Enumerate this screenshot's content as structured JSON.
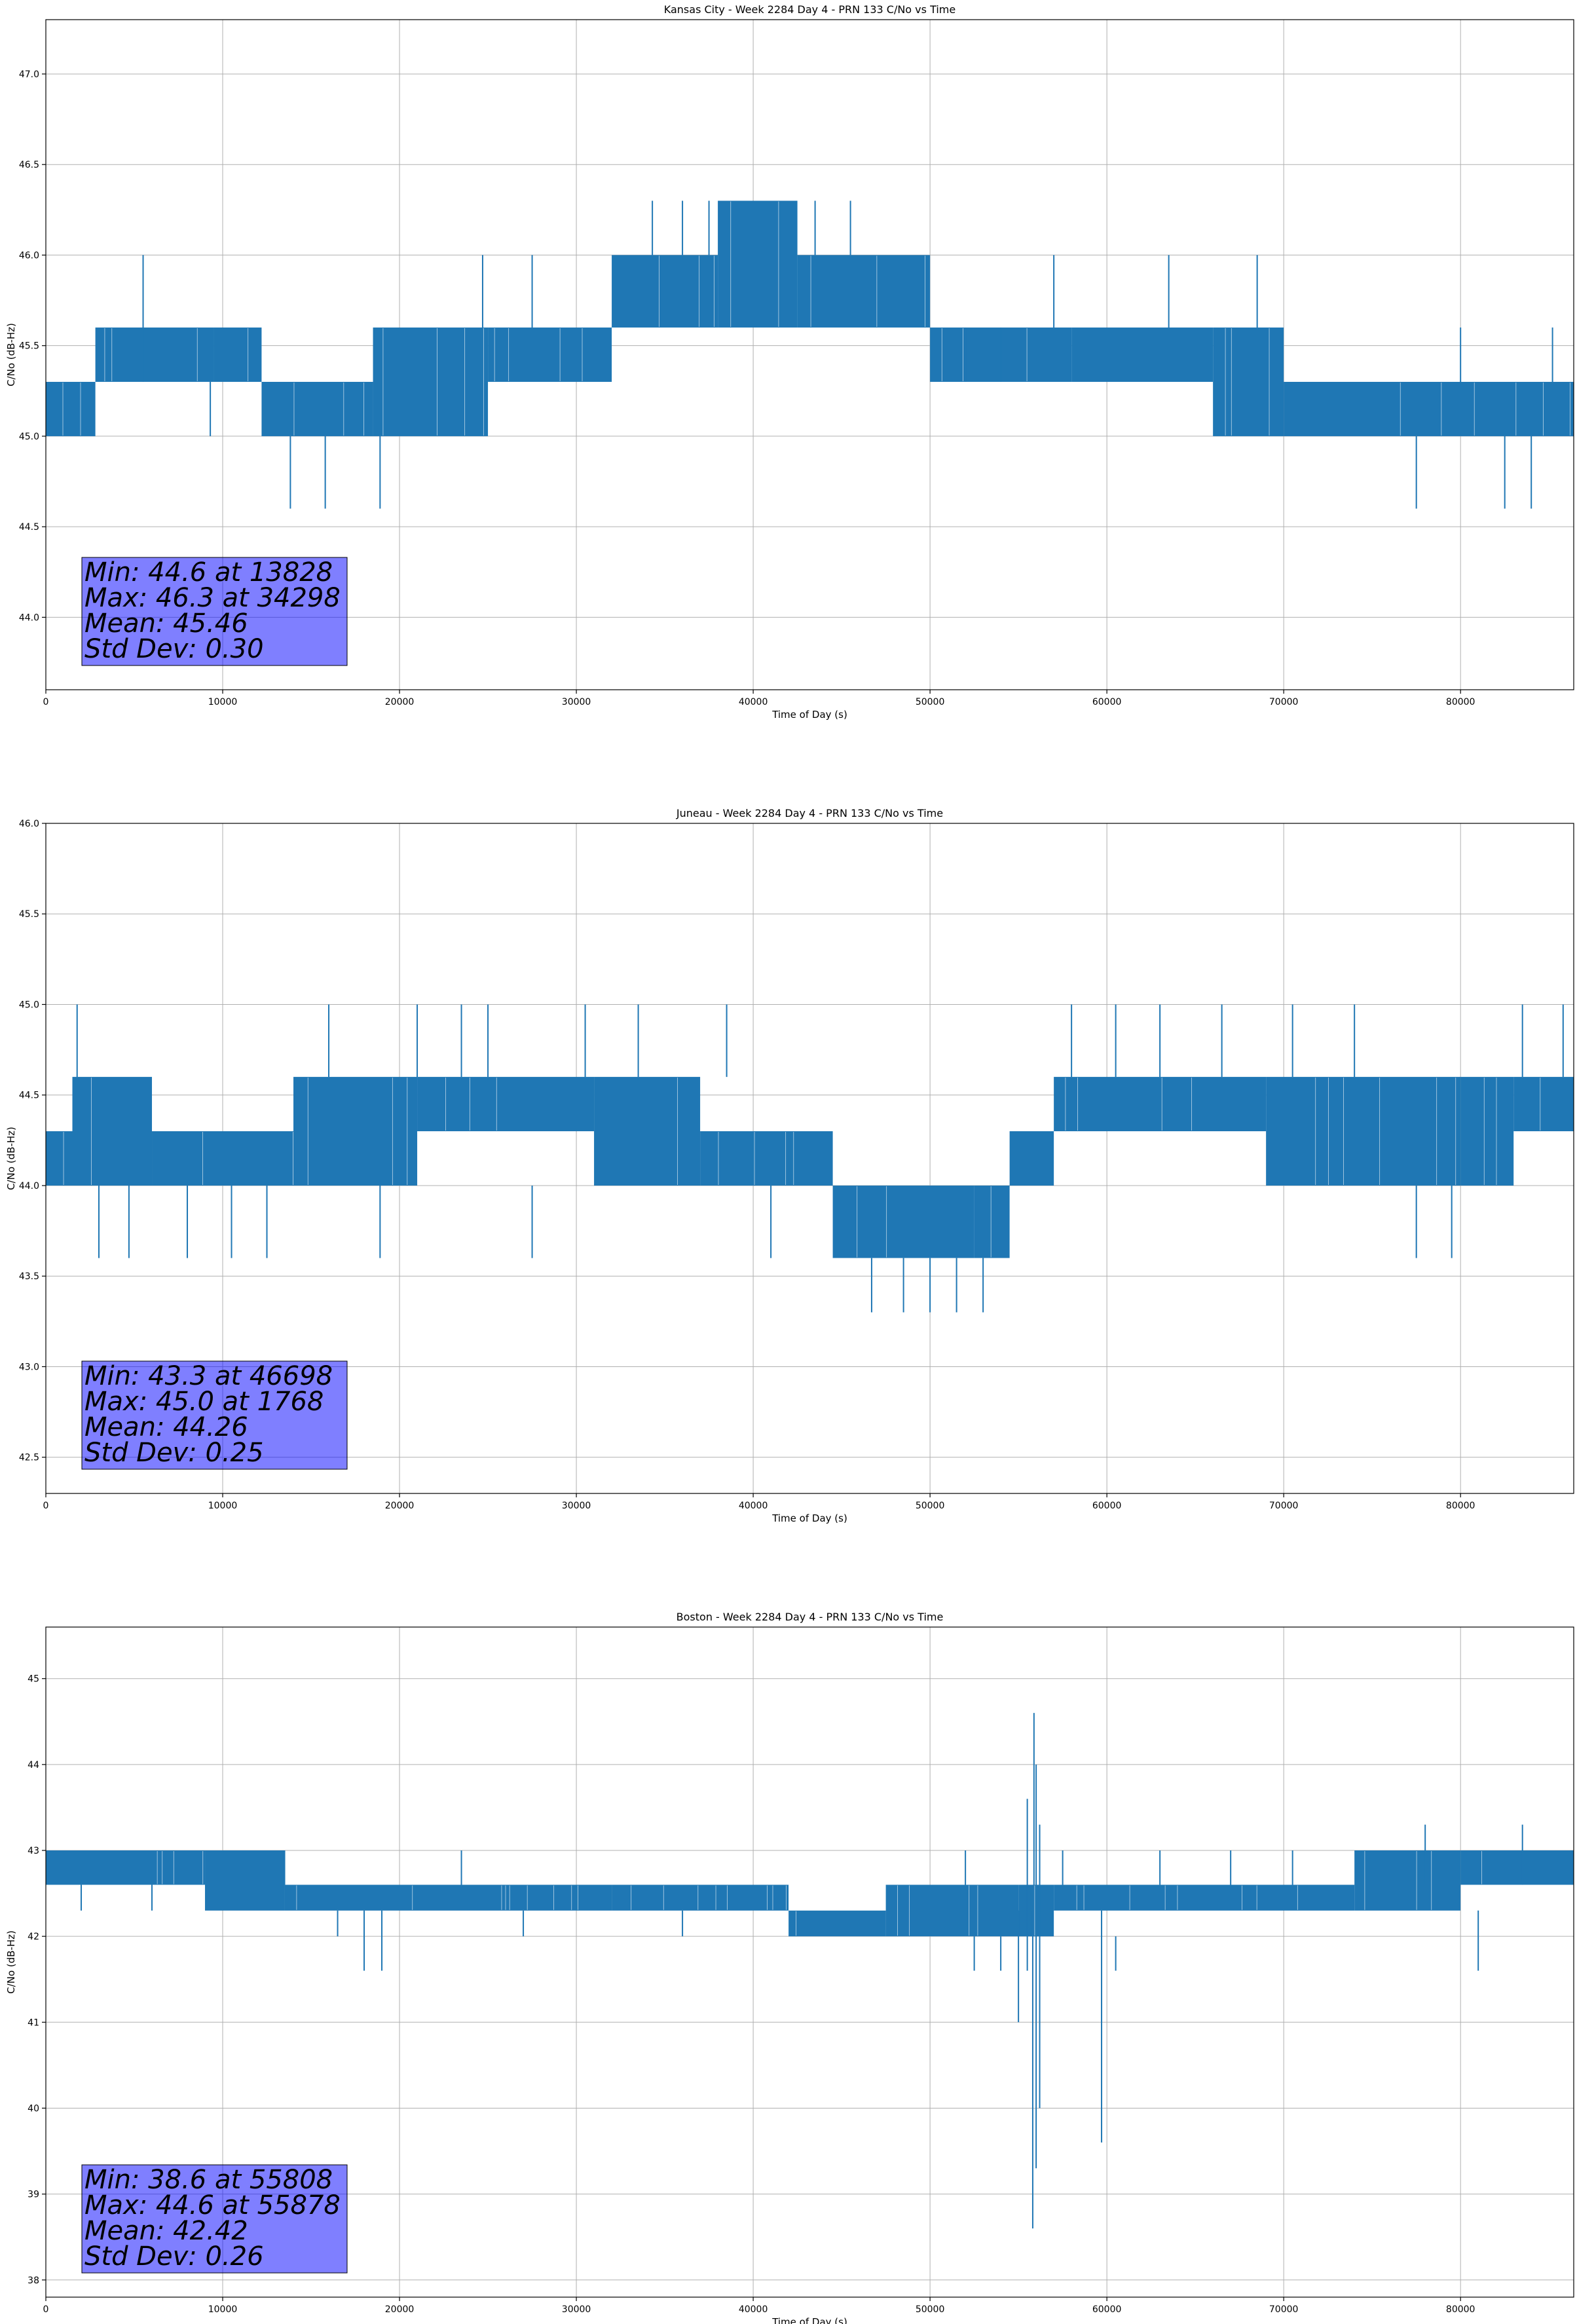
{
  "colors": {
    "series": "#1f77b4",
    "statbox": "#7f7fff",
    "grid": "#b0b0b0"
  },
  "chart_data": [
    {
      "type": "line",
      "title": "Kansas City - Week 2284 Day 4 - PRN 133 C/No vs Time",
      "xlabel": "Time of Day (s)",
      "ylabel": "C/No (dB-Hz)",
      "xlim": [
        0,
        86400
      ],
      "ylim": [
        43.6,
        47.3
      ],
      "xticks": [
        0,
        10000,
        20000,
        30000,
        40000,
        50000,
        60000,
        70000,
        80000
      ],
      "yticks": [
        44.0,
        44.5,
        45.0,
        45.5,
        46.0,
        46.5,
        47.0
      ],
      "ytick_decimals": 1,
      "grid": true,
      "stats": [
        "Min: 44.6 at 13828",
        "Max: 46.3 at 34298",
        "Mean: 45.46",
        "Std Dev: 0.30"
      ],
      "bands": [
        {
          "x0": 0,
          "x1": 2800,
          "lo": 45.0,
          "hi": 45.3
        },
        {
          "x0": 2800,
          "x1": 9500,
          "lo": 45.3,
          "hi": 45.6
        },
        {
          "x0": 9500,
          "x1": 12200,
          "lo": 45.3,
          "hi": 45.6
        },
        {
          "x0": 12200,
          "x1": 18500,
          "lo": 45.0,
          "hi": 45.3
        },
        {
          "x0": 18500,
          "x1": 25000,
          "lo": 45.0,
          "hi": 45.6
        },
        {
          "x0": 25000,
          "x1": 32000,
          "lo": 45.3,
          "hi": 45.6
        },
        {
          "x0": 32000,
          "x1": 38000,
          "lo": 45.6,
          "hi": 46.0
        },
        {
          "x0": 38000,
          "x1": 42500,
          "lo": 45.6,
          "hi": 46.3
        },
        {
          "x0": 42500,
          "x1": 50000,
          "lo": 45.6,
          "hi": 46.0
        },
        {
          "x0": 50000,
          "x1": 58000,
          "lo": 45.3,
          "hi": 45.6
        },
        {
          "x0": 58000,
          "x1": 66000,
          "lo": 45.3,
          "hi": 45.6
        },
        {
          "x0": 66000,
          "x1": 70000,
          "lo": 45.0,
          "hi": 45.6
        },
        {
          "x0": 70000,
          "x1": 86400,
          "lo": 45.0,
          "hi": 45.3
        }
      ],
      "spikes": [
        {
          "x": 5500,
          "lo": 45.3,
          "hi": 46.0
        },
        {
          "x": 9300,
          "lo": 45.0,
          "hi": 45.3
        },
        {
          "x": 13828,
          "lo": 44.6,
          "hi": 45.0
        },
        {
          "x": 15800,
          "lo": 44.6,
          "hi": 45.0
        },
        {
          "x": 18900,
          "lo": 44.6,
          "hi": 45.0
        },
        {
          "x": 24700,
          "lo": 45.6,
          "hi": 46.0
        },
        {
          "x": 27500,
          "lo": 45.6,
          "hi": 46.0
        },
        {
          "x": 34298,
          "lo": 46.0,
          "hi": 46.3
        },
        {
          "x": 36000,
          "lo": 46.0,
          "hi": 46.3
        },
        {
          "x": 37500,
          "lo": 46.0,
          "hi": 46.3
        },
        {
          "x": 43500,
          "lo": 46.0,
          "hi": 46.3
        },
        {
          "x": 45500,
          "lo": 46.0,
          "hi": 46.3
        },
        {
          "x": 52000,
          "lo": 45.3,
          "hi": 45.6
        },
        {
          "x": 54000,
          "lo": 45.3,
          "hi": 45.6
        },
        {
          "x": 57000,
          "lo": 45.6,
          "hi": 46.0
        },
        {
          "x": 63500,
          "lo": 45.6,
          "hi": 46.0
        },
        {
          "x": 68500,
          "lo": 45.6,
          "hi": 46.0
        },
        {
          "x": 77500,
          "lo": 44.6,
          "hi": 45.0
        },
        {
          "x": 80000,
          "lo": 45.3,
          "hi": 45.6
        },
        {
          "x": 82500,
          "lo": 44.6,
          "hi": 45.0
        },
        {
          "x": 84000,
          "lo": 44.6,
          "hi": 45.0
        },
        {
          "x": 85200,
          "lo": 45.3,
          "hi": 45.6
        }
      ]
    },
    {
      "type": "line",
      "title": "Juneau - Week 2284 Day 4 - PRN 133 C/No vs Time",
      "xlabel": "Time of Day (s)",
      "ylabel": "C/No (dB-Hz)",
      "xlim": [
        0,
        86400
      ],
      "ylim": [
        42.3,
        46.0
      ],
      "xticks": [
        0,
        10000,
        20000,
        30000,
        40000,
        50000,
        60000,
        70000,
        80000
      ],
      "yticks": [
        42.5,
        43.0,
        43.5,
        44.0,
        44.5,
        45.0,
        45.5,
        46.0
      ],
      "ytick_decimals": 1,
      "grid": true,
      "stats": [
        "Min: 43.3 at 46698",
        "Max: 45.0 at 1768",
        "Mean: 44.26",
        "Std Dev: 0.25"
      ],
      "bands": [
        {
          "x0": 0,
          "x1": 1500,
          "lo": 44.0,
          "hi": 44.3
        },
        {
          "x0": 1500,
          "x1": 6000,
          "lo": 44.0,
          "hi": 44.6
        },
        {
          "x0": 6000,
          "x1": 14000,
          "lo": 44.0,
          "hi": 44.3
        },
        {
          "x0": 14000,
          "x1": 21000,
          "lo": 44.0,
          "hi": 44.6
        },
        {
          "x0": 21000,
          "x1": 31000,
          "lo": 44.3,
          "hi": 44.6
        },
        {
          "x0": 31000,
          "x1": 37000,
          "lo": 44.0,
          "hi": 44.6
        },
        {
          "x0": 37000,
          "x1": 44500,
          "lo": 44.0,
          "hi": 44.3
        },
        {
          "x0": 44500,
          "x1": 52500,
          "lo": 43.6,
          "hi": 44.0
        },
        {
          "x0": 52500,
          "x1": 54500,
          "lo": 43.6,
          "hi": 44.0
        },
        {
          "x0": 54500,
          "x1": 57000,
          "lo": 44.0,
          "hi": 44.3
        },
        {
          "x0": 57000,
          "x1": 69000,
          "lo": 44.3,
          "hi": 44.6
        },
        {
          "x0": 69000,
          "x1": 80000,
          "lo": 44.0,
          "hi": 44.6
        },
        {
          "x0": 80000,
          "x1": 83000,
          "lo": 44.0,
          "hi": 44.6
        },
        {
          "x0": 83000,
          "x1": 86400,
          "lo": 44.3,
          "hi": 44.6
        }
      ],
      "spikes": [
        {
          "x": 1768,
          "lo": 44.6,
          "hi": 45.0
        },
        {
          "x": 3000,
          "lo": 43.6,
          "hi": 44.0
        },
        {
          "x": 4700,
          "lo": 43.6,
          "hi": 44.0
        },
        {
          "x": 8000,
          "lo": 43.6,
          "hi": 44.0
        },
        {
          "x": 10500,
          "lo": 43.6,
          "hi": 44.0
        },
        {
          "x": 12500,
          "lo": 43.6,
          "hi": 44.0
        },
        {
          "x": 16000,
          "lo": 44.6,
          "hi": 45.0
        },
        {
          "x": 18900,
          "lo": 43.6,
          "hi": 44.0
        },
        {
          "x": 21000,
          "lo": 44.6,
          "hi": 45.0
        },
        {
          "x": 23500,
          "lo": 44.6,
          "hi": 45.0
        },
        {
          "x": 25000,
          "lo": 44.6,
          "hi": 45.0
        },
        {
          "x": 27500,
          "lo": 43.6,
          "hi": 44.0
        },
        {
          "x": 30500,
          "lo": 44.6,
          "hi": 45.0
        },
        {
          "x": 33500,
          "lo": 44.6,
          "hi": 45.0
        },
        {
          "x": 38500,
          "lo": 44.6,
          "hi": 45.0
        },
        {
          "x": 41000,
          "lo": 43.6,
          "hi": 44.0
        },
        {
          "x": 46698,
          "lo": 43.3,
          "hi": 43.6
        },
        {
          "x": 48500,
          "lo": 43.3,
          "hi": 43.6
        },
        {
          "x": 50000,
          "lo": 43.3,
          "hi": 43.6
        },
        {
          "x": 51500,
          "lo": 43.3,
          "hi": 43.6
        },
        {
          "x": 53000,
          "lo": 43.3,
          "hi": 43.6
        },
        {
          "x": 58000,
          "lo": 44.6,
          "hi": 45.0
        },
        {
          "x": 60500,
          "lo": 44.6,
          "hi": 45.0
        },
        {
          "x": 63000,
          "lo": 44.6,
          "hi": 45.0
        },
        {
          "x": 66500,
          "lo": 44.6,
          "hi": 45.0
        },
        {
          "x": 70500,
          "lo": 44.6,
          "hi": 45.0
        },
        {
          "x": 74000,
          "lo": 44.6,
          "hi": 45.0
        },
        {
          "x": 77500,
          "lo": 43.6,
          "hi": 44.0
        },
        {
          "x": 79500,
          "lo": 43.6,
          "hi": 44.0
        },
        {
          "x": 83500,
          "lo": 44.6,
          "hi": 45.0
        },
        {
          "x": 85800,
          "lo": 44.6,
          "hi": 45.0
        }
      ]
    },
    {
      "type": "line",
      "title": "Boston - Week 2284 Day 4 - PRN 133 C/No vs Time",
      "xlabel": "Time of Day (s)",
      "ylabel": "C/No (dB-Hz)",
      "xlim": [
        0,
        86400
      ],
      "ylim": [
        37.8,
        45.6
      ],
      "xticks": [
        0,
        10000,
        20000,
        30000,
        40000,
        50000,
        60000,
        70000,
        80000
      ],
      "yticks": [
        38,
        39,
        40,
        41,
        42,
        43,
        44,
        45
      ],
      "ytick_decimals": 0,
      "grid": true,
      "stats": [
        "Min: 38.6 at 55808",
        "Max: 44.6 at 55878",
        "Mean: 42.42",
        "Std Dev: 0.26"
      ],
      "bands": [
        {
          "x0": 0,
          "x1": 9000,
          "lo": 42.6,
          "hi": 43.0
        },
        {
          "x0": 9000,
          "x1": 13500,
          "lo": 42.3,
          "hi": 43.0
        },
        {
          "x0": 13500,
          "x1": 32000,
          "lo": 42.3,
          "hi": 42.6
        },
        {
          "x0": 32000,
          "x1": 42000,
          "lo": 42.3,
          "hi": 42.6
        },
        {
          "x0": 42000,
          "x1": 47500,
          "lo": 42.0,
          "hi": 42.3
        },
        {
          "x0": 47500,
          "x1": 55000,
          "lo": 42.0,
          "hi": 42.6
        },
        {
          "x0": 55000,
          "x1": 57000,
          "lo": 42.0,
          "hi": 42.6
        },
        {
          "x0": 57000,
          "x1": 74000,
          "lo": 42.3,
          "hi": 42.6
        },
        {
          "x0": 74000,
          "x1": 80000,
          "lo": 42.3,
          "hi": 43.0
        },
        {
          "x0": 80000,
          "x1": 86400,
          "lo": 42.6,
          "hi": 43.0
        }
      ],
      "spikes": [
        {
          "x": 2000,
          "lo": 42.3,
          "hi": 42.6
        },
        {
          "x": 6000,
          "lo": 42.3,
          "hi": 42.6
        },
        {
          "x": 13500,
          "lo": 42.6,
          "hi": 43.0
        },
        {
          "x": 16500,
          "lo": 42.0,
          "hi": 42.3
        },
        {
          "x": 18000,
          "lo": 41.6,
          "hi": 42.3
        },
        {
          "x": 19000,
          "lo": 41.6,
          "hi": 42.3
        },
        {
          "x": 23500,
          "lo": 42.6,
          "hi": 43.0
        },
        {
          "x": 27000,
          "lo": 42.0,
          "hi": 42.3
        },
        {
          "x": 36000,
          "lo": 42.0,
          "hi": 42.3
        },
        {
          "x": 52000,
          "lo": 42.6,
          "hi": 43.0
        },
        {
          "x": 52500,
          "lo": 41.6,
          "hi": 42.0
        },
        {
          "x": 54000,
          "lo": 41.6,
          "hi": 42.0
        },
        {
          "x": 55000,
          "lo": 41.0,
          "hi": 42.3
        },
        {
          "x": 55500,
          "lo": 41.6,
          "hi": 43.6
        },
        {
          "x": 55808,
          "lo": 38.6,
          "hi": 42.3
        },
        {
          "x": 55878,
          "lo": 42.6,
          "hi": 44.6
        },
        {
          "x": 56000,
          "lo": 39.3,
          "hi": 44.0
        },
        {
          "x": 56200,
          "lo": 40.0,
          "hi": 43.3
        },
        {
          "x": 57500,
          "lo": 42.6,
          "hi": 43.0
        },
        {
          "x": 59700,
          "lo": 39.6,
          "hi": 42.3
        },
        {
          "x": 60500,
          "lo": 41.6,
          "hi": 42.0
        },
        {
          "x": 63000,
          "lo": 42.6,
          "hi": 43.0
        },
        {
          "x": 67000,
          "lo": 42.6,
          "hi": 43.0
        },
        {
          "x": 70500,
          "lo": 42.6,
          "hi": 43.0
        },
        {
          "x": 78000,
          "lo": 42.6,
          "hi": 43.3
        },
        {
          "x": 83500,
          "lo": 42.6,
          "hi": 43.3
        },
        {
          "x": 81000,
          "lo": 41.6,
          "hi": 42.3
        }
      ]
    }
  ]
}
